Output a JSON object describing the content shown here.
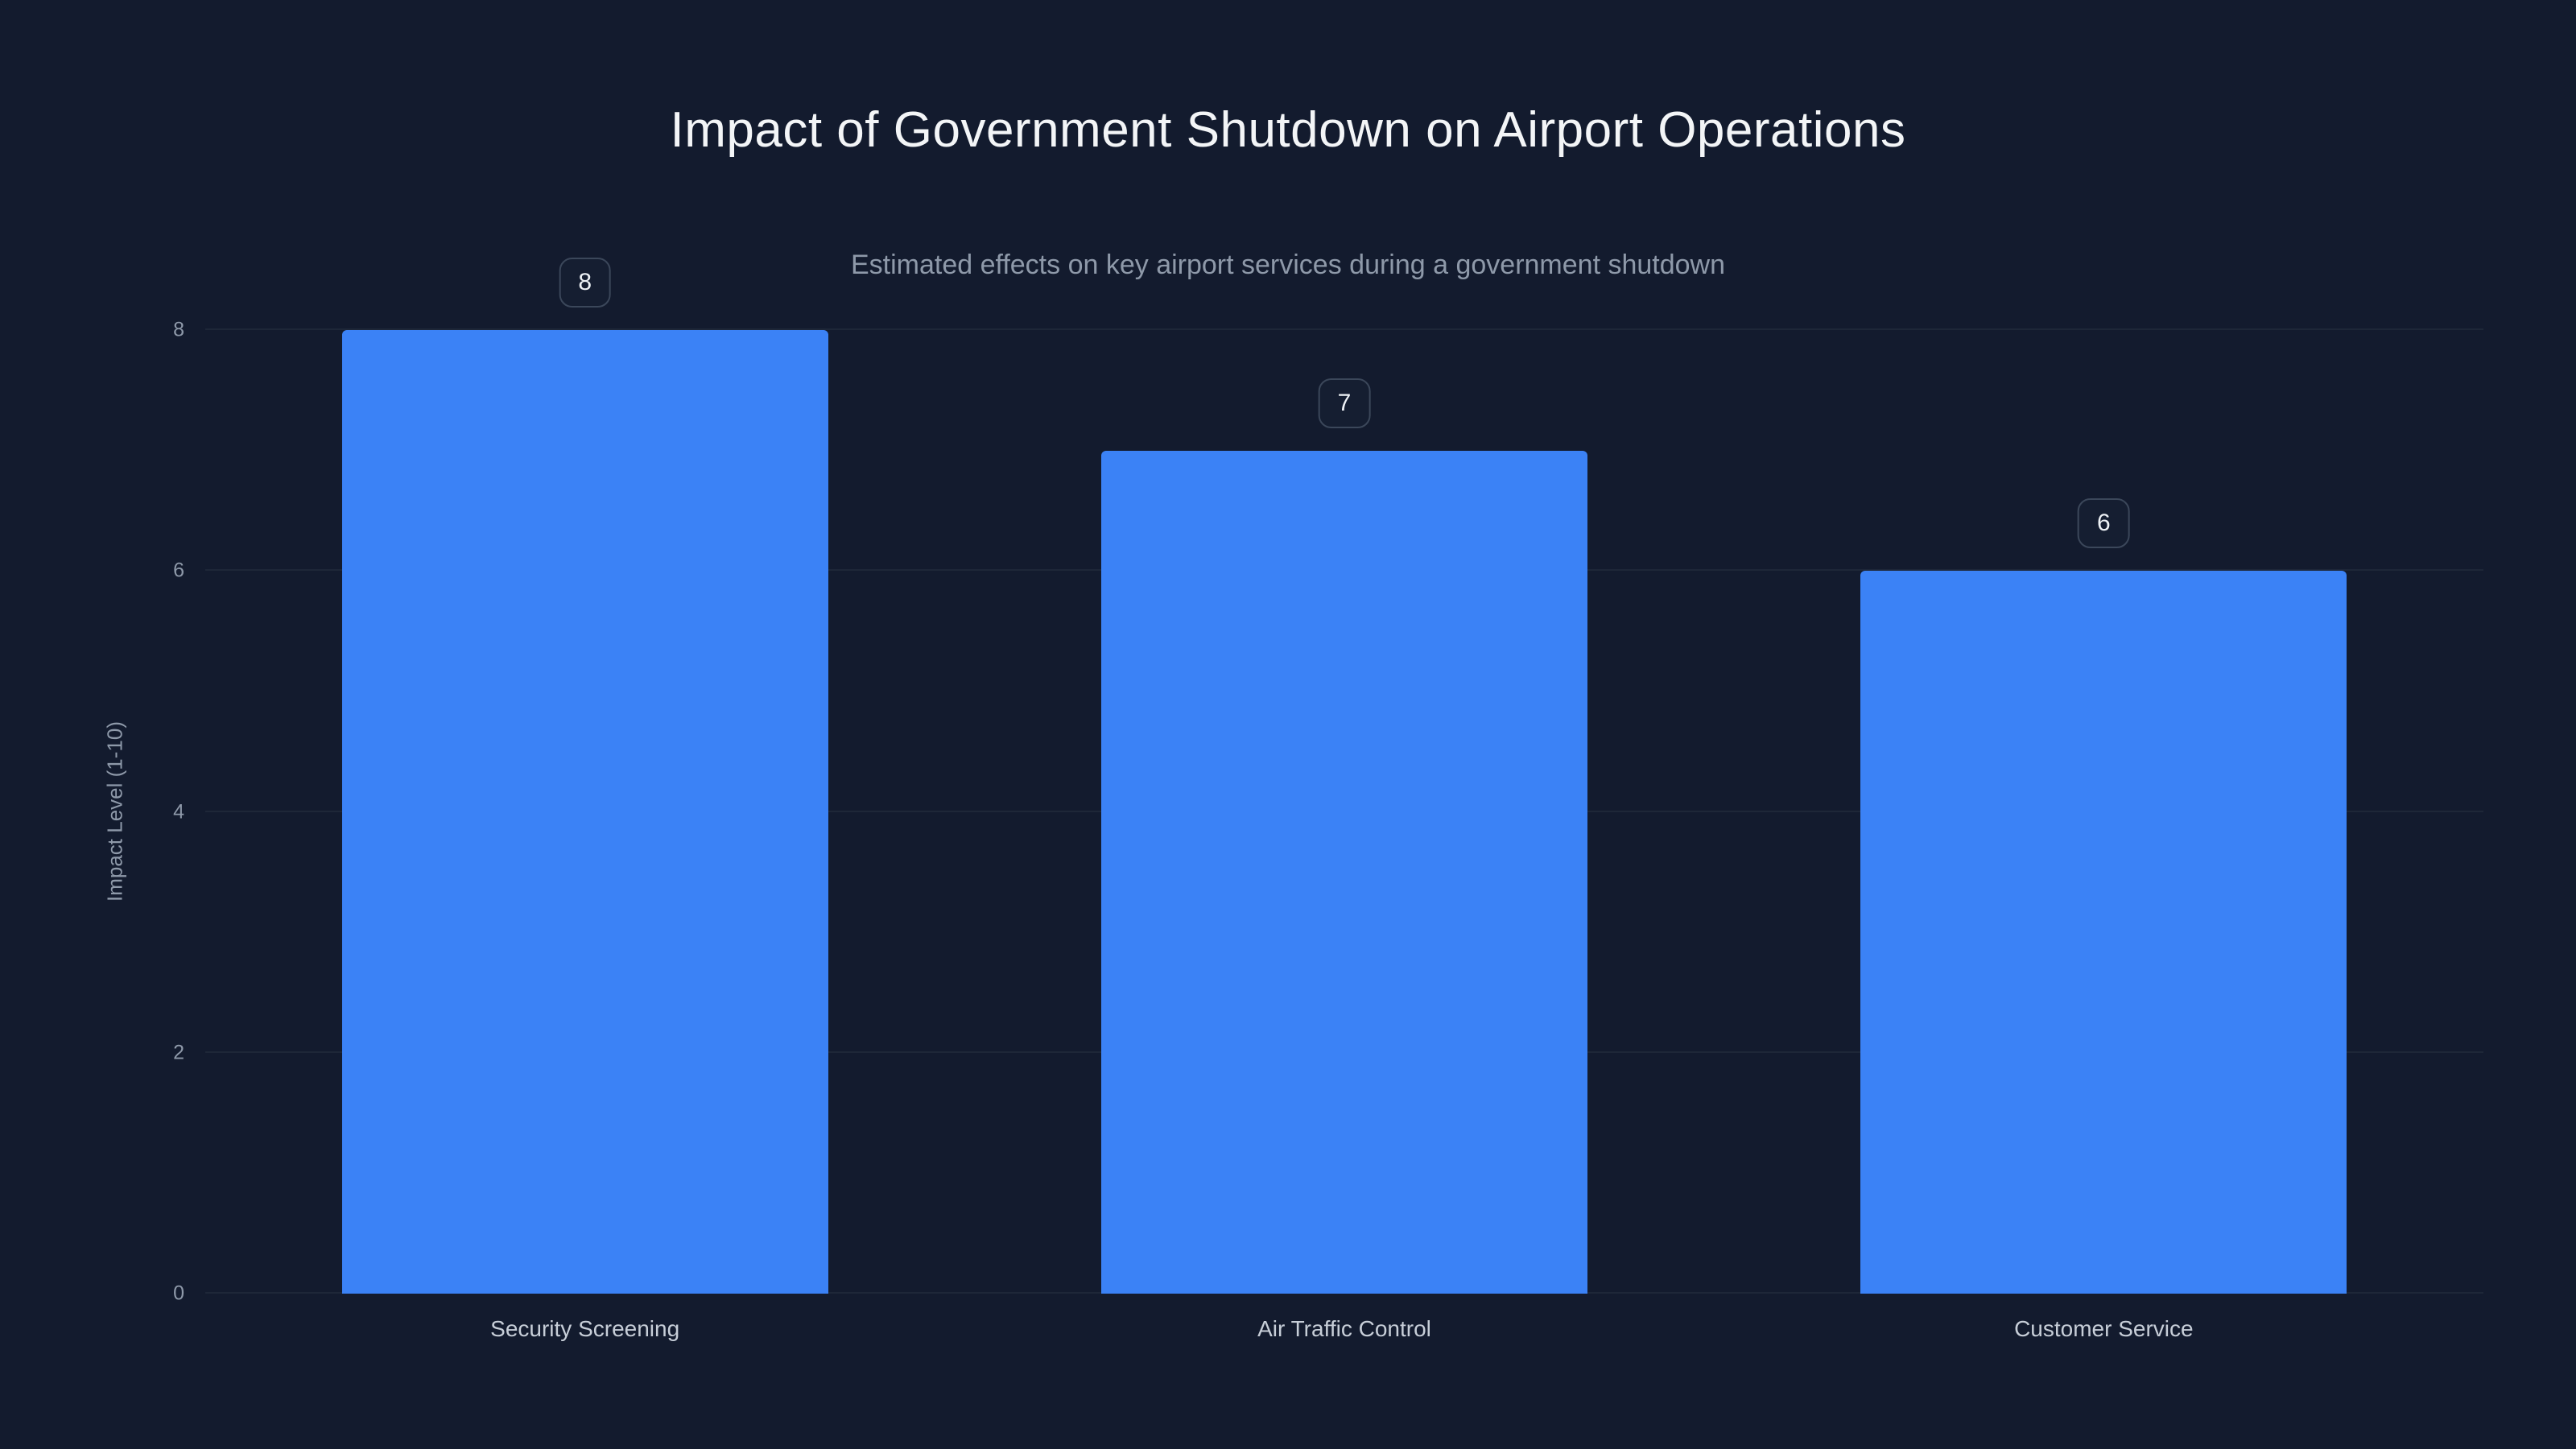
{
  "header": {
    "title": "Impact of Government Shutdown on Airport Operations",
    "subtitle": "Estimated effects on key airport services during a government shutdown"
  },
  "chart_data": {
    "type": "bar",
    "title": "Impact of Government Shutdown on Airport Operations",
    "subtitle": "Estimated effects on key airport services during a government shutdown",
    "categories": [
      "Security Screening",
      "Air Traffic Control",
      "Customer Service"
    ],
    "values": [
      8,
      7,
      6
    ],
    "data_labels": [
      "8",
      "7",
      "6"
    ],
    "xlabel": "",
    "ylabel": "Impact Level (1-10)",
    "ylim": [
      0,
      8
    ],
    "yticks": [
      0,
      2,
      4,
      6,
      8
    ],
    "grid": true,
    "legend": false,
    "layout": {
      "bar_width_fraction": 0.64,
      "legend_position": "none"
    },
    "colors": {
      "background": "#131b2e",
      "bar": "#3b82f6",
      "gridline": "#1e2738",
      "title_text": "#f3f5f7",
      "subtitle_text": "#8e99a9",
      "tick_text": "#8e99a9",
      "category_text": "#c7ced8",
      "badge_border": "#3b475a",
      "badge_text": "#eef2f6"
    }
  }
}
